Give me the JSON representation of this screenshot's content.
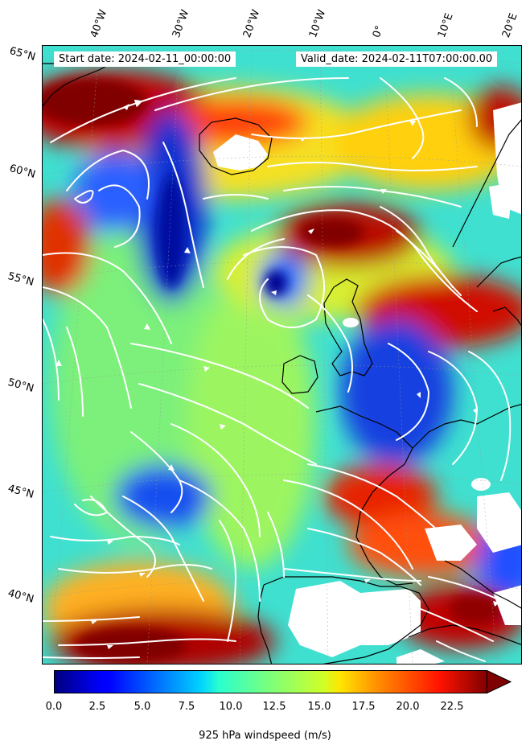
{
  "header": {
    "start_date": "Start date: 2024-02-11_00:00:00",
    "valid_date": "Valid_date: 2024-02-11T07:00:00.00"
  },
  "axes": {
    "lon_labels": [
      "40°W",
      "30°W",
      "20°W",
      "10°W",
      "0°",
      "10°E",
      "20°E"
    ],
    "lat_labels": [
      "65°N",
      "60°N",
      "55°N",
      "50°N",
      "45°N",
      "40°N"
    ]
  },
  "colorbar": {
    "label": "925 hPa windspeed (m/s)",
    "ticks": [
      "0.0",
      "2.5",
      "5.0",
      "7.5",
      "10.0",
      "12.5",
      "15.0",
      "17.5",
      "20.0",
      "22.5"
    ],
    "min": 0,
    "max": 25,
    "extend": "max",
    "colormap": "jet"
  },
  "colors": {
    "streamline": "#ffffff",
    "coastline": "#000000",
    "masked_land": "#ffffff"
  }
}
